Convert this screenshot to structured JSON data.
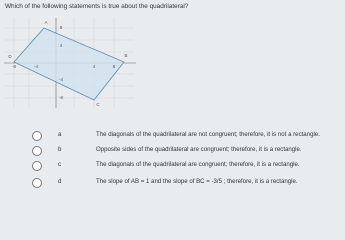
{
  "question": "Which of the following statements is true about the quadrilateral?",
  "figure": {
    "vertices": [
      "A",
      "B",
      "C",
      "D"
    ],
    "x_tick_labels": [
      "-8",
      "-4",
      "4",
      "8"
    ],
    "y_tick_labels": [
      "8",
      "4",
      "-4",
      "-8"
    ]
  },
  "options": [
    {
      "letter": "a",
      "text": "The diagonals of the quadrilateral are not congruent; therefore, it is not a rectangle."
    },
    {
      "letter": "b",
      "text": "Opposite sides of the quadrilateral are congruent; therefore, it is a rectangle."
    },
    {
      "letter": "c",
      "text": "The diagonals of the quadrilateral are congruent; therefore, it is a rectangle."
    },
    {
      "letter": "d",
      "text": "The slope of AB = 1 and the slope of BC = -3/5 ; therefore, it is a rectangle."
    }
  ]
}
